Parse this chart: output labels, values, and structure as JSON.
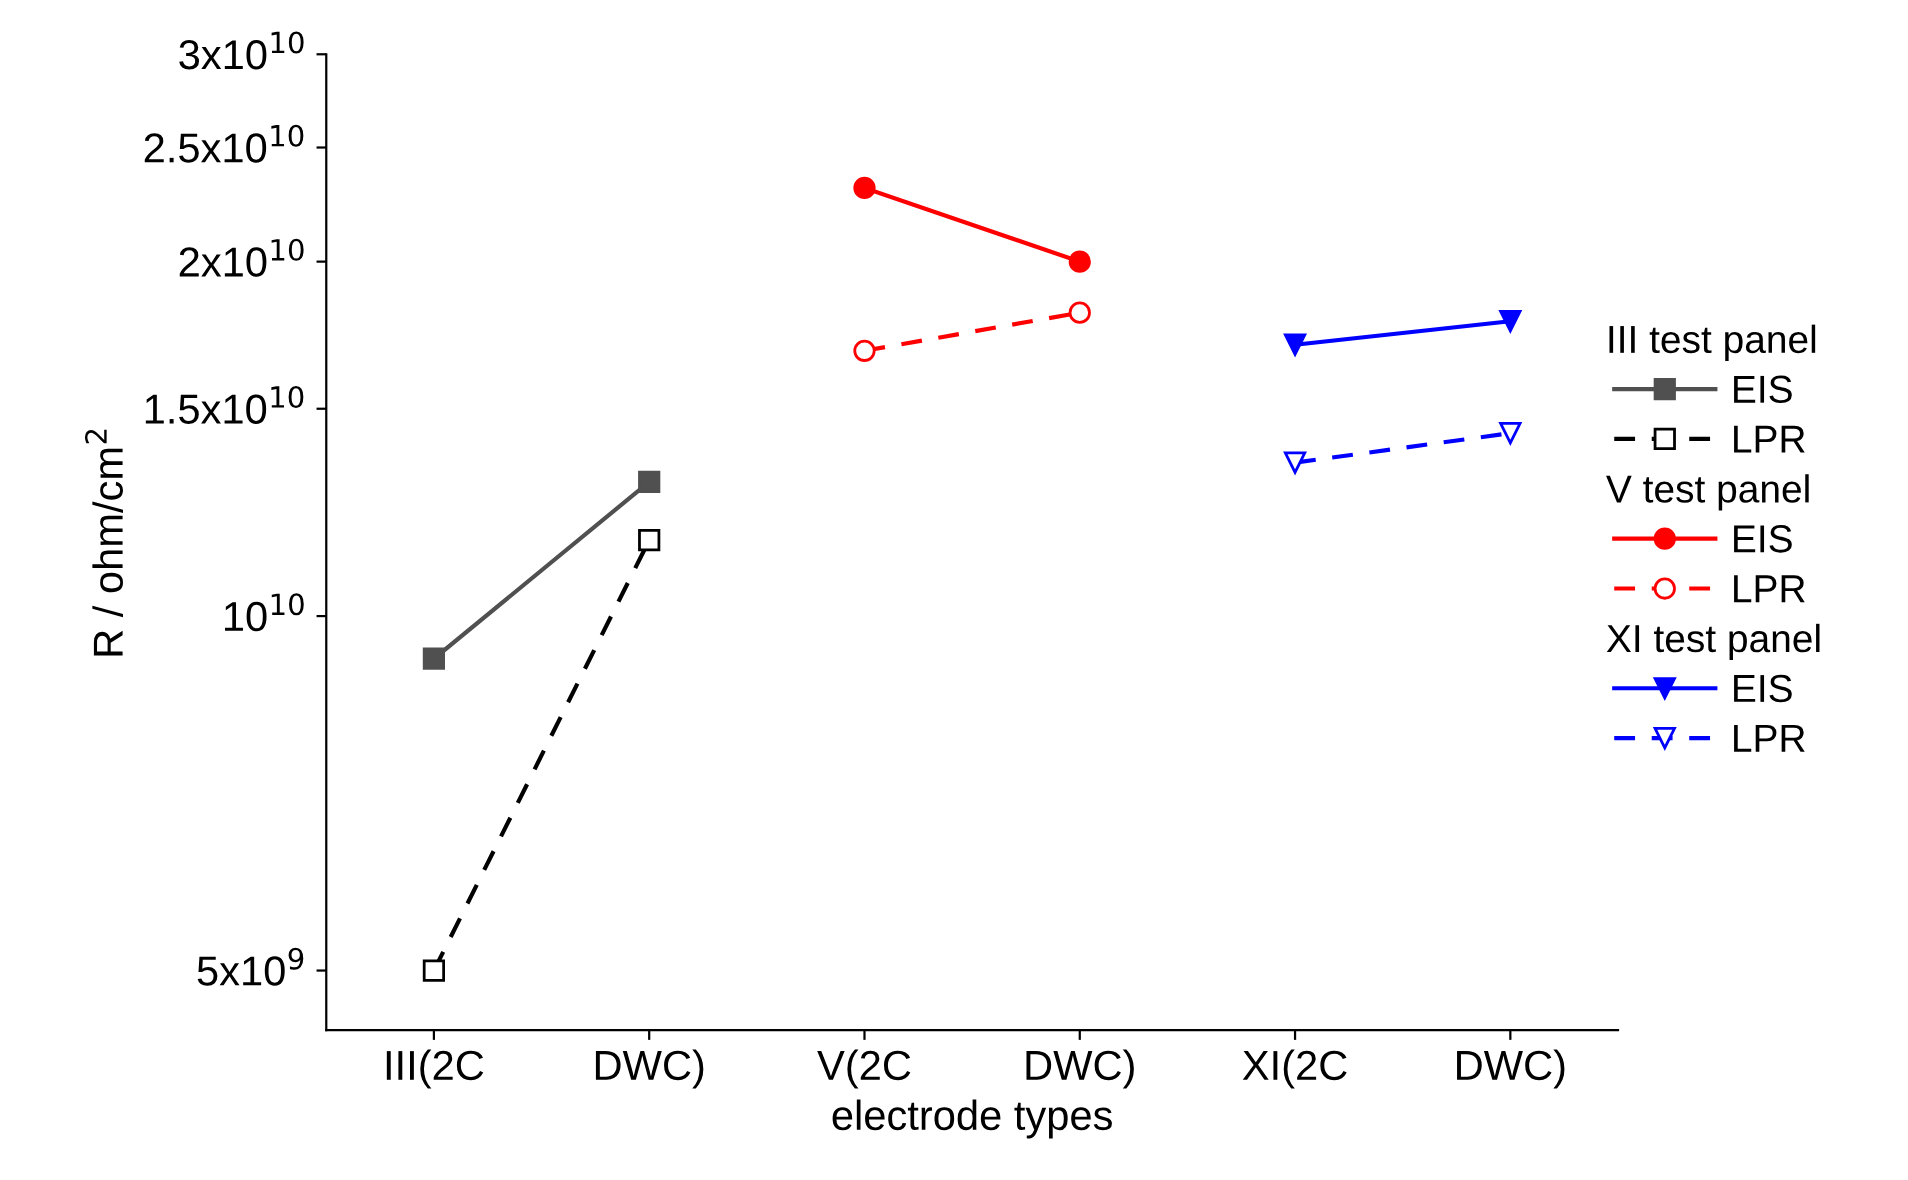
{
  "chart_data": {
    "type": "line",
    "xlabel": "electrode types",
    "ylabel": "R / ohm/cm$^{2}$",
    "categories": [
      "III(2C",
      "DWC)",
      "V(2C",
      "DWC)",
      "XI(2C",
      "DWC)"
    ],
    "series": [
      {
        "name": "EIS",
        "color": "#505050",
        "marker": "square",
        "line_style": "solid",
        "values": [
          9200000000.0,
          13000000000.0,
          null,
          null,
          null,
          null
        ]
      },
      {
        "name": "LPR",
        "color": "#000000",
        "marker": "square",
        "line_style": "dashed",
        "values": [
          5000000000.0,
          11600000000.0,
          null,
          null,
          null,
          null
        ]
      },
      {
        "name": "EIS",
        "color": "#ff0000",
        "marker": "circle",
        "line_style": "solid",
        "values": [
          null,
          null,
          23100000000.0,
          20000000000.0,
          null,
          null
        ]
      },
      {
        "name": "LPR",
        "color": "#ff0000",
        "marker": "circle",
        "line_style": "dashed",
        "values": [
          null,
          null,
          16800000000.0,
          18100000000.0,
          null,
          null
        ]
      },
      {
        "name": "EIS",
        "color": "#0000ff",
        "marker": "triangle",
        "line_style": "solid",
        "values": [
          null,
          null,
          null,
          null,
          17000000000.0,
          17800000000.0
        ]
      },
      {
        "name": "LPR",
        "color": "#0000ff",
        "marker": "triangle",
        "line_style": "dashed",
        "values": [
          null,
          null,
          null,
          null,
          13500000000.0,
          14300000000.0
        ]
      }
    ],
    "annotations": [
      "III test panel",
      "V test panel",
      "XI test panel"
    ],
    "log": "y",
    "ylim": [
      4450000000.0,
      30000000000.0
    ],
    "yticks": [
      {
        "value": 5000000000.0,
        "label": "5x10$^{9}$"
      },
      {
        "value": 10000000000.0,
        "label": "10$^{10}$"
      },
      {
        "value": 15000000000.0,
        "label": "1.5x10$^{10}$"
      },
      {
        "value": 20000000000.0,
        "label": "2x10$^{10}$"
      },
      {
        "value": 25000000000.0,
        "label": "2.5x10$^{10}$"
      },
      {
        "value": 30000000000.0,
        "label": "3x10$^{10}$"
      }
    ],
    "grid": false,
    "legend": "right"
  }
}
